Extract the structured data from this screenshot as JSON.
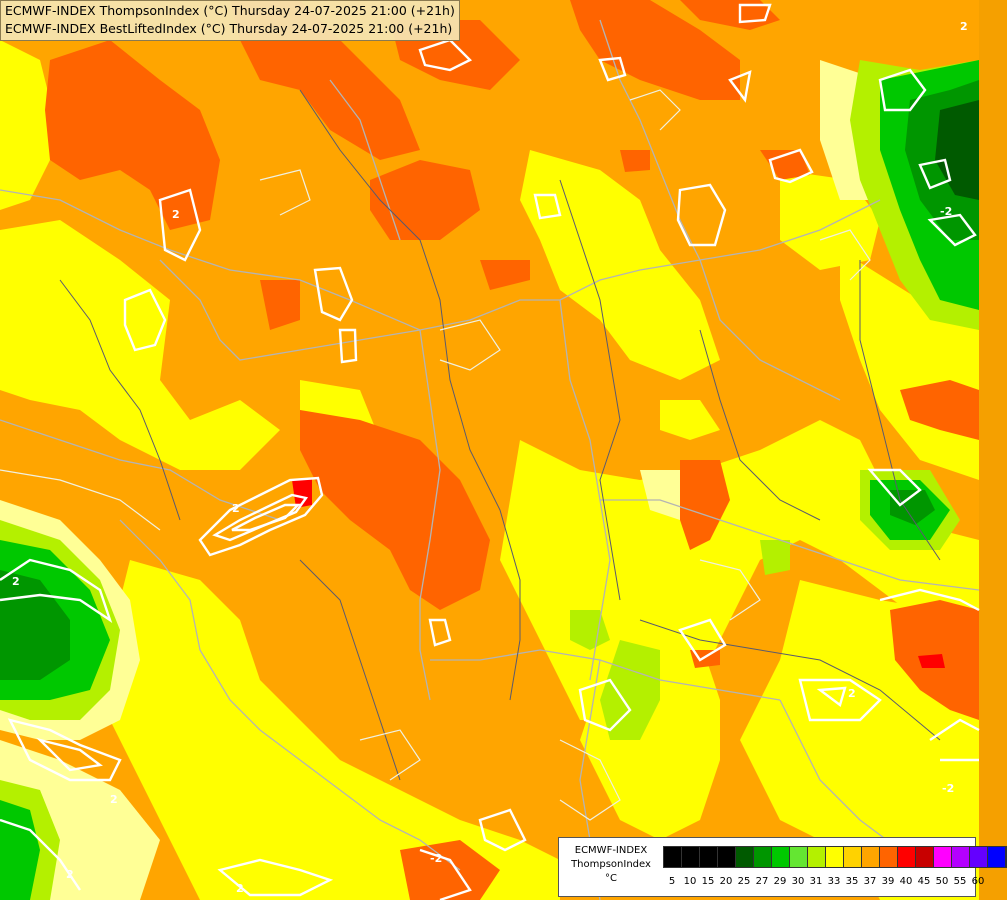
{
  "header": {
    "line1": "ECMWF-INDEX ThompsonIndex (°C) Thursday 24-07-2025 21:00 (+21h)",
    "line2": "ECMWF-INDEX BestLiftedIndex (°C) Thursday 24-07-2025 21:00 (+21h)"
  },
  "legend": {
    "model": "ECMWF-INDEX",
    "parameter": "ThompsonIndex",
    "unit": "°C",
    "bins": [
      {
        "label": "5",
        "color": "#000000"
      },
      {
        "label": "10",
        "color": "#000000"
      },
      {
        "label": "15",
        "color": "#000000"
      },
      {
        "label": "20",
        "color": "#000000"
      },
      {
        "label": "25",
        "color": "#005a00"
      },
      {
        "label": "27",
        "color": "#009600"
      },
      {
        "label": "29",
        "color": "#00c800"
      },
      {
        "label": "30",
        "color": "#64e632"
      },
      {
        "label": "31",
        "color": "#b4f000"
      },
      {
        "label": "33",
        "color": "#ffff00"
      },
      {
        "label": "35",
        "color": "#ffd200"
      },
      {
        "label": "37",
        "color": "#ffa500"
      },
      {
        "label": "39",
        "color": "#ff6400"
      },
      {
        "label": "40",
        "color": "#ff0000"
      },
      {
        "label": "45",
        "color": "#c80000"
      },
      {
        "label": "50",
        "color": "#ff00ff"
      },
      {
        "label": "55",
        "color": "#b400ff"
      },
      {
        "label": "60",
        "color": "#6400ff"
      },
      {
        "label": "",
        "color": "#0000ff"
      }
    ]
  },
  "contour_labels": [
    "2",
    "2",
    "2",
    "2",
    "2",
    "-2",
    "-2",
    "-2",
    "2",
    "2",
    "2"
  ]
}
